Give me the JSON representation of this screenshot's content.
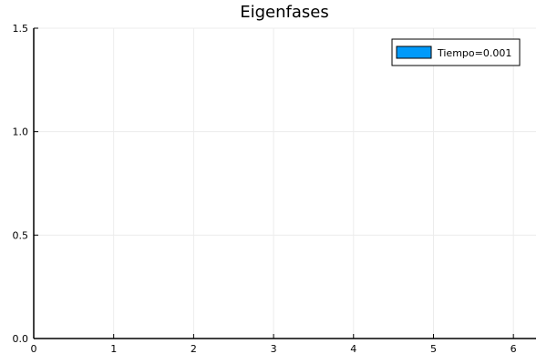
{
  "chart_data": {
    "type": "bar",
    "title": "Eigenfases",
    "xlabel": "",
    "ylabel": "",
    "xlim": [
      0,
      6.283185307
    ],
    "ylim": [
      0,
      1.5
    ],
    "xticks": [
      0,
      1,
      2,
      3,
      4,
      5,
      6
    ],
    "yticks": [
      0.0,
      0.5,
      1.0,
      1.5
    ],
    "xtick_labels": [
      "0",
      "1",
      "2",
      "3",
      "4",
      "5",
      "6"
    ],
    "ytick_labels": [
      "0.0",
      "0.5",
      "1.0",
      "1.5"
    ],
    "grid": true,
    "legend_position": "top-right",
    "series": [
      {
        "name": "Tiempo=0.001",
        "color": "#009AFA",
        "values": []
      }
    ]
  }
}
